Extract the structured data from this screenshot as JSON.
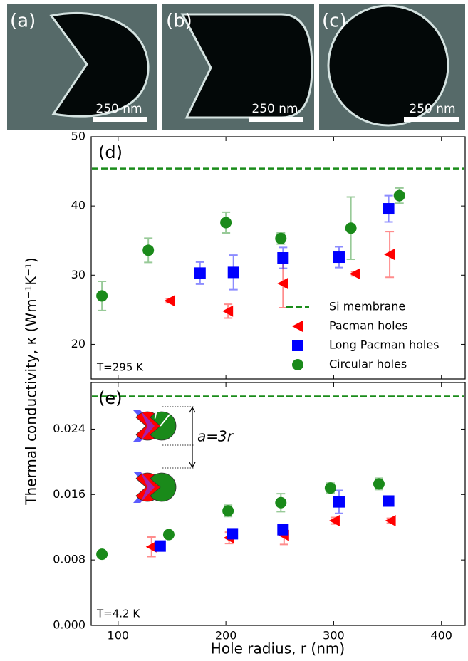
{
  "images": [
    {
      "label": "(a)",
      "scale_bar": "250 nm"
    },
    {
      "label": "(b)",
      "scale_bar": "250 nm"
    },
    {
      "label": "(c)",
      "scale_bar": "250 nm"
    }
  ],
  "chart_data": [
    {
      "type": "scatter",
      "panel_label": "(d)",
      "annotation": "T=295 K",
      "ylabel": "Thermal conductivity, κ (Wm⁻¹K⁻¹)",
      "xlim": [
        75,
        422
      ],
      "xticks": [
        100,
        200,
        300,
        400
      ],
      "ylim": [
        15,
        50
      ],
      "yticks": [
        20,
        30,
        40,
        50
      ],
      "legend": "lower right",
      "reference": {
        "name": "Si membrane",
        "value": 45.4,
        "color": "#1a8c1a"
      },
      "series": [
        {
          "name": "Pacman holes",
          "color": "#ff0000",
          "marker": "triangle-left",
          "x": [
            148,
            202,
            253,
            320,
            352
          ],
          "values": [
            26.3,
            24.8,
            28.8,
            30.2,
            33.0
          ],
          "errors": [
            0.3,
            1.0,
            3.5,
            0.3,
            3.3
          ]
        },
        {
          "name": "Long Pacman holes",
          "color": "#0000ff",
          "marker": "square",
          "x": [
            176,
            207,
            253,
            305,
            351
          ],
          "values": [
            30.3,
            30.4,
            32.5,
            32.6,
            39.6
          ],
          "errors": [
            1.6,
            2.5,
            1.5,
            1.5,
            1.9
          ]
        },
        {
          "name": "Circular holes",
          "color": "#1a8a1a",
          "marker": "circle",
          "x": [
            85,
            128,
            200,
            251,
            316,
            361
          ],
          "values": [
            27.0,
            33.6,
            37.6,
            35.3,
            36.8,
            41.5
          ],
          "errors": [
            2.1,
            1.75,
            1.5,
            0.8,
            4.5,
            1.1
          ]
        }
      ]
    },
    {
      "type": "scatter",
      "panel_label": "(e)",
      "annotation": "T=4.2 K",
      "xlabel": "Hole radius, r (nm)",
      "xlim": [
        75,
        422
      ],
      "xticks": [
        100,
        200,
        300,
        400
      ],
      "ylim": [
        0,
        0.0297
      ],
      "yticks": [
        {
          "value": 0,
          "label": "0.000"
        },
        0.008,
        0.016,
        0.024
      ],
      "reference": {
        "value": 0.028,
        "color": "#1a8c1a"
      },
      "inset_labels": {
        "radius": "r",
        "period": "a=3r"
      },
      "series": [
        {
          "name": "Pacman holes",
          "color": "#ff0000",
          "marker": "triangle-left",
          "x": [
            131,
            203,
            254,
            301,
            353
          ],
          "values": [
            0.0096,
            0.0107,
            0.011,
            0.0128,
            0.0128
          ],
          "errors": [
            0.0012,
            0.0007,
            0.0011,
            0.0004,
            0.0003
          ]
        },
        {
          "name": "Long Pacman holes",
          "color": "#0000ff",
          "marker": "square",
          "x": [
            139,
            206,
            253,
            305,
            351
          ],
          "values": [
            0.0097,
            0.0112,
            0.0117,
            0.0151,
            0.0152
          ],
          "errors": [
            0.0002,
            0.0003,
            0.0003,
            0.0014,
            0.0002
          ]
        },
        {
          "name": "Circular holes",
          "color": "#1a8a1a",
          "marker": "circle",
          "x": [
            85,
            147,
            202,
            251,
            297,
            342
          ],
          "values": [
            0.0087,
            0.0111,
            0.014,
            0.015,
            0.0168,
            0.0173
          ],
          "errors": [
            0,
            0.0004,
            0.0007,
            0.0011,
            0.0006,
            0.0007
          ]
        }
      ]
    }
  ]
}
